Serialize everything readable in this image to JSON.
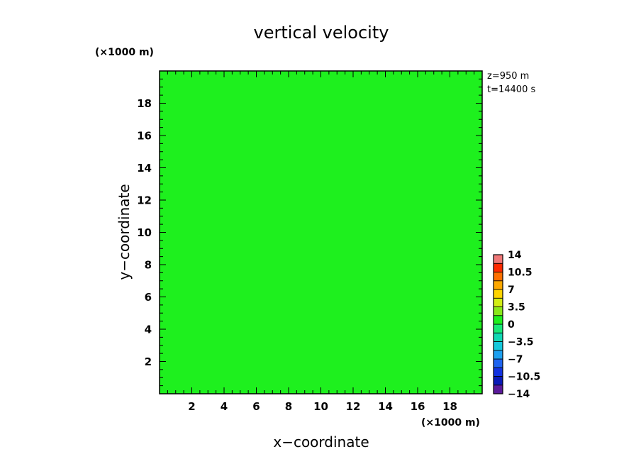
{
  "chart_data": {
    "type": "heatmap",
    "title": "vertical velocity",
    "xlabel": "x−coordinate",
    "ylabel": "y−coordinate",
    "x_unit": "(×1000 m)",
    "y_unit": "(×1000 m)",
    "xlim": [
      0,
      20
    ],
    "ylim": [
      0,
      20
    ],
    "x_ticks": [
      2,
      4,
      6,
      8,
      10,
      12,
      14,
      16,
      18
    ],
    "y_ticks": [
      2,
      4,
      6,
      8,
      10,
      12,
      14,
      16,
      18
    ],
    "x_tick_labels": [
      "2",
      "4",
      "6",
      "8",
      "10",
      "12",
      "14",
      "16",
      "18"
    ],
    "y_tick_labels": [
      "2",
      "4",
      "6",
      "8",
      "10",
      "12",
      "14",
      "16",
      "18"
    ],
    "field_value": 0,
    "field_color": "#1ef01e",
    "annotations": {
      "z": "z=950 m",
      "t": "t=14400 s"
    },
    "colorbar": {
      "levels": [
        -14,
        -12.25,
        -10.5,
        -8.75,
        -7,
        -5.25,
        -3.5,
        -1.75,
        0,
        1.75,
        3.5,
        5.25,
        7,
        8.75,
        10.5,
        12.25,
        14
      ],
      "colors": [
        "#5a1a9a",
        "#0a1ab8",
        "#1232e0",
        "#1e64f0",
        "#1ea0f0",
        "#14c8dc",
        "#10d8b4",
        "#18e878",
        "#1ef01e",
        "#8ae81a",
        "#d2ee14",
        "#ffd400",
        "#ffa800",
        "#ff7000",
        "#ff2a00",
        "#f07878"
      ],
      "tick_values": [
        -14,
        -10.5,
        -7,
        -3.5,
        0,
        3.5,
        7,
        10.5,
        14
      ],
      "tick_labels": [
        "−14",
        "−10.5",
        "−7",
        "−3.5",
        "0",
        "3.5",
        "7",
        "10.5",
        "14"
      ]
    }
  }
}
